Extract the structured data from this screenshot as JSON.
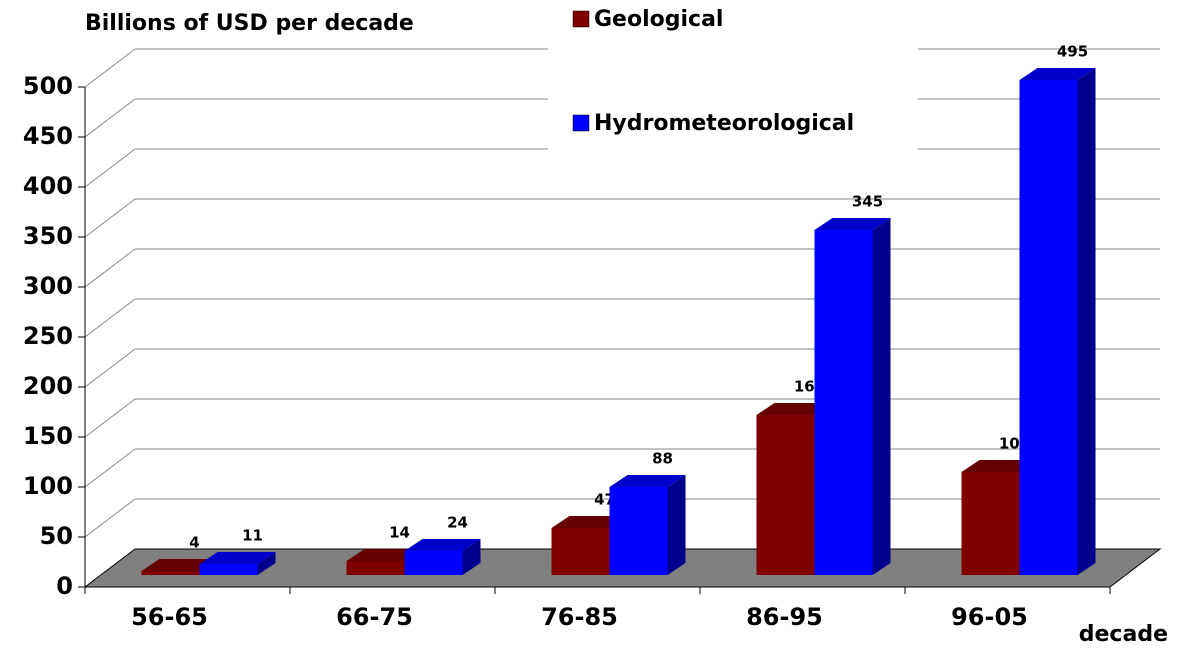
{
  "chart_data": {
    "type": "bar",
    "title": "Billions of USD per decade",
    "x_label": "decade",
    "categories": [
      "56-65",
      "66-75",
      "76-85",
      "86-95",
      "96-05"
    ],
    "series": [
      {
        "name": "Geological",
        "color": "#800000",
        "values": [
          4,
          14,
          47,
          160,
          103
        ]
      },
      {
        "name": "Hydrometeorological",
        "color": "#0000ff",
        "values": [
          11,
          24,
          88,
          345,
          495
        ]
      }
    ],
    "ylim": [
      0,
      500
    ],
    "yticks": [
      0,
      50,
      100,
      150,
      200,
      250,
      300,
      350,
      400,
      450,
      500
    ],
    "grid": true
  }
}
